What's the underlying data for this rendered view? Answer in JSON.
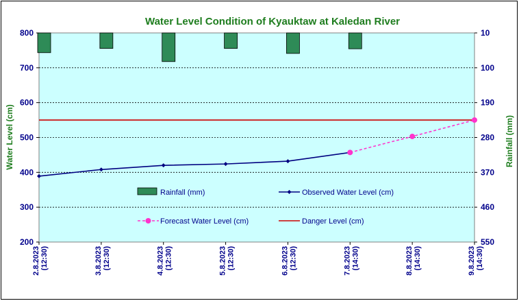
{
  "chart_data": {
    "type": "bar+line",
    "title": "Water Level Condition of Kyauktaw at Kaledan River",
    "ylabel_left": "Water Level (cm)",
    "ylabel_right": "Rainfall (mm)",
    "ylim_left": [
      200,
      800
    ],
    "yticks_left": [
      800,
      700,
      600,
      500,
      400,
      300,
      200
    ],
    "ylim_right": [
      10,
      550
    ],
    "yticks_right": [
      10,
      100,
      190,
      280,
      370,
      460,
      550
    ],
    "right_axis_inverted": true,
    "grid": true,
    "categories": [
      [
        "2.8.2023",
        "(12:30)"
      ],
      [
        "3.8.2023",
        "(12:30)"
      ],
      [
        "4.8.2023",
        "(12:30)"
      ],
      [
        "5.8.2023",
        "(12:30)"
      ],
      [
        "6.8.2023",
        "(12:30)"
      ],
      [
        "7.8.2023",
        "(14:30)"
      ],
      [
        "8.8.2023",
        "(14:30)"
      ],
      [
        "9.8.2023",
        "(14:30)"
      ]
    ],
    "series": [
      {
        "name": "Rainfall (mm)",
        "kind": "bar",
        "axis": "right",
        "color": "#2e8b57",
        "values": [
          61,
          50,
          84,
          50,
          63,
          51,
          null,
          null
        ]
      },
      {
        "name": "Observed Water Level (cm)",
        "kind": "line",
        "axis": "left",
        "color": "#000080",
        "values": [
          389,
          408,
          420,
          424,
          432,
          457,
          null,
          null
        ]
      },
      {
        "name": "Forecast Water Level (cm)",
        "kind": "dashed-line",
        "axis": "left",
        "color": "#ff33cc",
        "values": [
          null,
          null,
          null,
          null,
          null,
          457,
          503,
          550
        ]
      },
      {
        "name": "Danger Level (cm)",
        "kind": "hline",
        "axis": "left",
        "color": "#cc0000",
        "value": 550
      }
    ],
    "legend_position": "inside-bottom-center"
  }
}
